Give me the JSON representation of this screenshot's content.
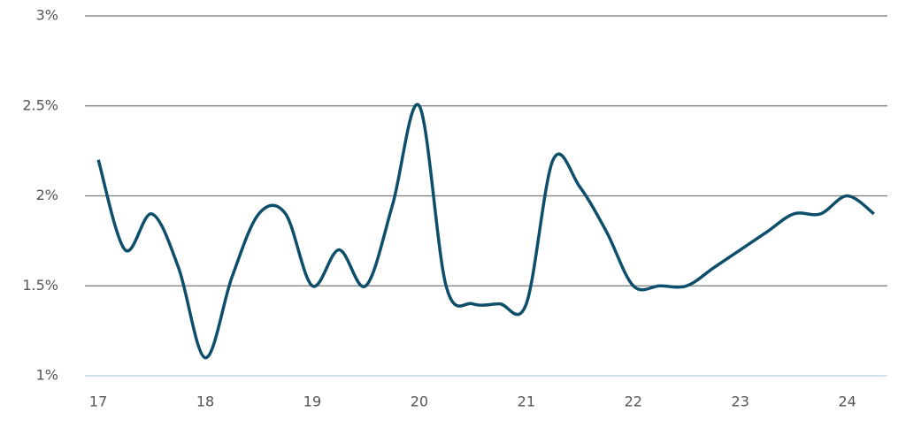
{
  "chart_data": {
    "type": "line",
    "x": [
      17,
      17.25,
      17.5,
      17.75,
      18,
      18.25,
      18.5,
      18.75,
      19,
      19.25,
      19.5,
      19.75,
      20,
      20.25,
      20.5,
      20.75,
      21,
      21.25,
      21.5,
      21.75,
      22,
      22.25,
      22.5,
      22.75,
      23,
      23.25,
      23.5,
      23.75,
      24,
      24.25
    ],
    "series": [
      {
        "color": "#0d4f6b",
        "values": [
          2.2,
          1.7,
          1.9,
          1.6,
          1.1,
          1.55,
          1.9,
          1.9,
          1.5,
          1.7,
          1.5,
          1.95,
          2.5,
          1.5,
          1.4,
          1.4,
          1.4,
          2.2,
          2.05,
          1.8,
          1.5,
          1.5,
          1.5,
          1.6,
          1.7,
          1.8,
          1.9,
          1.9,
          2.0,
          1.9
        ]
      }
    ],
    "xlim": [
      16.875,
      24.375
    ],
    "xticks": [
      17,
      18,
      19,
      20,
      21,
      22,
      23,
      24
    ],
    "ylim": [
      1,
      3
    ],
    "yticks": [
      {
        "value": 1,
        "label": "1%"
      },
      {
        "value": 1.5,
        "label": "1.5%"
      },
      {
        "value": 2,
        "label": "2%"
      },
      {
        "value": 2.5,
        "label": "2.5%"
      },
      {
        "value": 3,
        "label": "3%"
      }
    ],
    "grid": true
  }
}
